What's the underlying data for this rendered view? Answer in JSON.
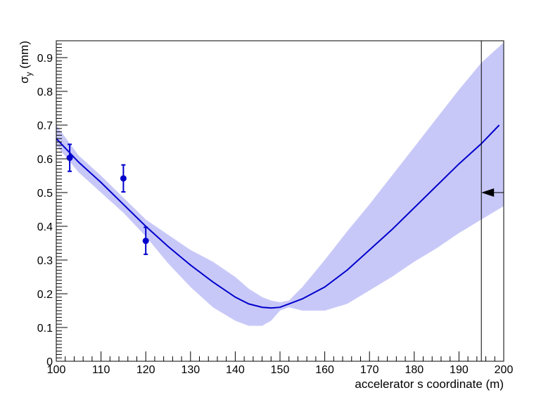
{
  "chart_data": {
    "type": "line",
    "xlabel": "accelerator s coordinate (m)",
    "ylabel": "σ",
    "ylabel_sub": "y",
    "ylabel_unit": " (mm)",
    "xlim": [
      100,
      200
    ],
    "ylim": [
      0,
      0.95
    ],
    "x_ticks": [
      100,
      110,
      120,
      130,
      140,
      150,
      160,
      170,
      180,
      190,
      200
    ],
    "x_tick_labels": [
      "100",
      "110",
      "120",
      "130",
      "140",
      "150",
      "160",
      "170",
      "180",
      "190",
      "200"
    ],
    "y_ticks": [
      0,
      0.1,
      0.2,
      0.3,
      0.4,
      0.5,
      0.6,
      0.7,
      0.8,
      0.9
    ],
    "y_tick_labels": [
      "0",
      "0.1",
      "0.2",
      "0.3",
      "0.4",
      "0.5",
      "0.6",
      "0.7",
      "0.8",
      "0.9"
    ],
    "grid": false,
    "series": [
      {
        "kind": "line",
        "color": "#0000cc",
        "x": [
          100,
          105,
          110,
          115,
          120,
          125,
          130,
          135,
          140,
          143,
          146,
          148,
          150,
          152,
          155,
          160,
          165,
          170,
          175,
          180,
          185,
          190,
          195,
          199
        ],
        "y": [
          0.66,
          0.59,
          0.53,
          0.465,
          0.4,
          0.34,
          0.285,
          0.235,
          0.19,
          0.17,
          0.16,
          0.158,
          0.16,
          0.17,
          0.185,
          0.22,
          0.27,
          0.33,
          0.39,
          0.455,
          0.52,
          0.585,
          0.645,
          0.7
        ]
      },
      {
        "kind": "band",
        "color": "#c8c8f8",
        "x": [
          100,
          105,
          110,
          115,
          120,
          125,
          130,
          135,
          140,
          143,
          146,
          148,
          150,
          152,
          155,
          160,
          165,
          170,
          175,
          180,
          185,
          190,
          195,
          200
        ],
        "lower": [
          0.64,
          0.56,
          0.5,
          0.44,
          0.37,
          0.29,
          0.22,
          0.16,
          0.12,
          0.105,
          0.105,
          0.12,
          0.15,
          0.16,
          0.15,
          0.15,
          0.17,
          0.21,
          0.25,
          0.295,
          0.335,
          0.38,
          0.42,
          0.46
        ],
        "upper": [
          0.7,
          0.61,
          0.55,
          0.485,
          0.42,
          0.375,
          0.33,
          0.295,
          0.25,
          0.215,
          0.19,
          0.18,
          0.175,
          0.18,
          0.22,
          0.3,
          0.385,
          0.465,
          0.55,
          0.635,
          0.72,
          0.805,
          0.885,
          0.945
        ]
      },
      {
        "kind": "points",
        "color": "#0000cc",
        "x": [
          103,
          115,
          120
        ],
        "y": [
          0.603,
          0.542,
          0.357
        ],
        "err": [
          0.04,
          0.04,
          0.04
        ]
      }
    ],
    "annotations": [
      {
        "kind": "vertical-line",
        "x": 195
      },
      {
        "kind": "arrow-left",
        "x_from": 200,
        "x_to": 195,
        "y": 0.5
      }
    ]
  }
}
